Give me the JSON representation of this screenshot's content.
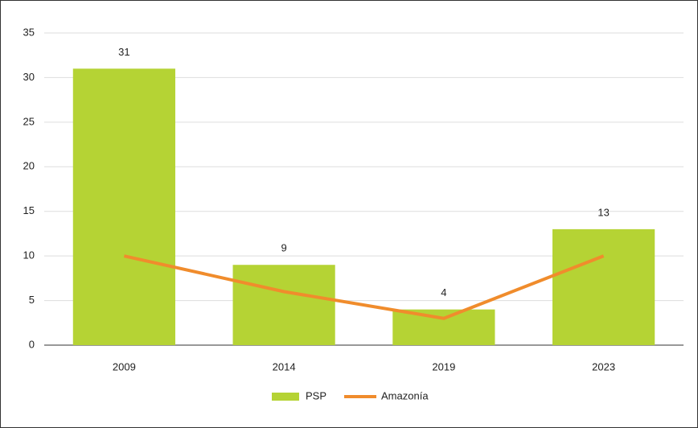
{
  "chart_data": {
    "type": "bar",
    "categories": [
      "2009",
      "2014",
      "2019",
      "2023"
    ],
    "series": [
      {
        "name": "PSP",
        "type": "bar",
        "color": "#b5d334",
        "values": [
          31,
          9,
          4,
          13
        ]
      },
      {
        "name": "Amazonía",
        "type": "line",
        "color": "#f08c2c",
        "values": [
          10,
          6,
          3,
          10
        ]
      }
    ],
    "ylim": [
      0,
      35
    ],
    "yticks": [
      0,
      5,
      10,
      15,
      20,
      25,
      30,
      35
    ],
    "grid": true,
    "legend": "bottom"
  }
}
